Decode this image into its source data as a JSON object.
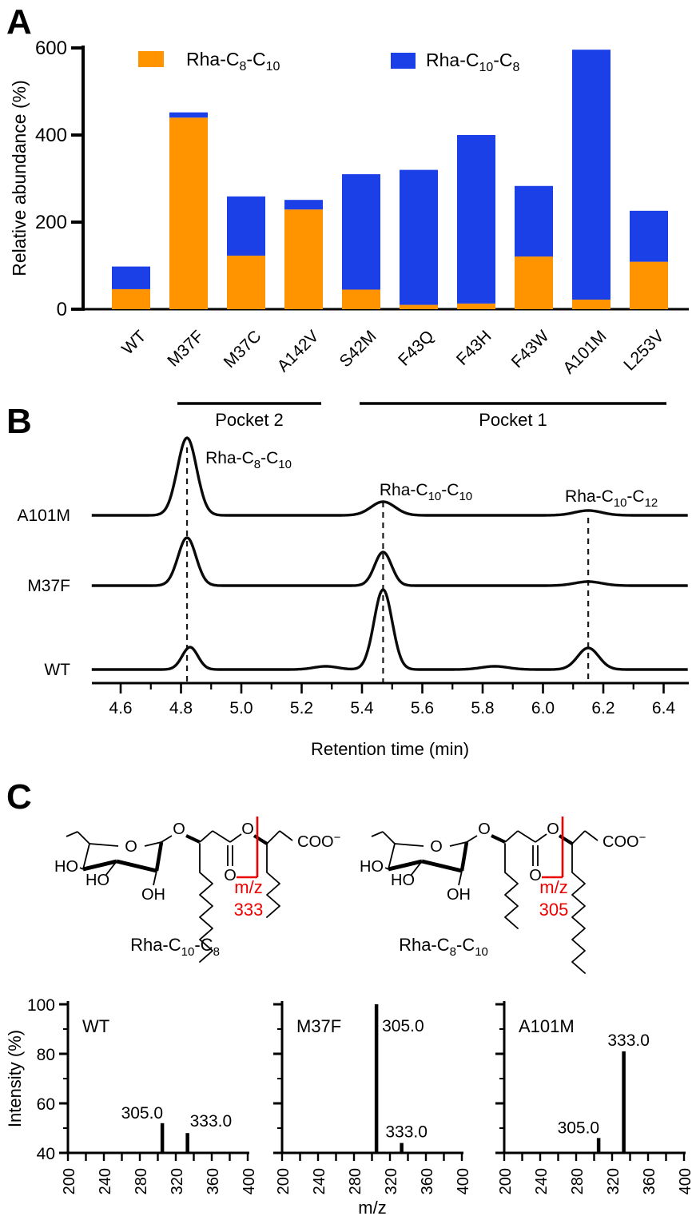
{
  "panels": {
    "a": {
      "label": "A"
    },
    "b": {
      "label": "B"
    },
    "c": {
      "label": "C",
      "accent_red": "#ED0000",
      "structures": [
        {
          "caption_parts": [
            [
              "Rha-C",
              0
            ],
            [
              "10",
              1
            ],
            [
              "-C",
              0
            ],
            [
              "8",
              1
            ]
          ],
          "mz_prefix": "m/z",
          "mz_value": "333",
          "ring_oxygen": "O",
          "glycosidic_oxygen": "O",
          "ester_oxygen": "O",
          "carbonyl_oxygen": "O",
          "hydroxyl_left": "HO",
          "hydroxyl_mid": "HO",
          "hydroxyl_bottom": "OH",
          "carboxylate": "COO",
          "carboxylate_charge": "−",
          "tail1": "long",
          "tail2": "short"
        },
        {
          "caption_parts": [
            [
              "Rha-C",
              0
            ],
            [
              "8",
              1
            ],
            [
              "-C",
              0
            ],
            [
              "10",
              1
            ]
          ],
          "mz_prefix": "m/z",
          "mz_value": "305",
          "ring_oxygen": "O",
          "glycosidic_oxygen": "O",
          "ester_oxygen": "O",
          "carbonyl_oxygen": "O",
          "hydroxyl_left": "HO",
          "hydroxyl_mid": "HO",
          "hydroxyl_bottom": "OH",
          "carboxylate": "COO",
          "carboxylate_charge": "−",
          "tail1": "short",
          "tail2": "long"
        }
      ]
    }
  },
  "chart_data": [
    {
      "id": "panel-a",
      "type": "bar",
      "stacked": true,
      "categories": [
        "WT",
        "M37F",
        "M37C",
        "A142V",
        "S42M",
        "F43Q",
        "F43H",
        "F43W",
        "A101M",
        "L253V"
      ],
      "series": [
        {
          "name": "Rha-C8-C10",
          "name_parts": [
            [
              "Rha-C",
              0
            ],
            [
              "8",
              1
            ],
            [
              "-C",
              0
            ],
            [
              "10",
              1
            ]
          ],
          "color": "#FF9300",
          "values": [
            46,
            440,
            123,
            229,
            45,
            10,
            13,
            121,
            22,
            109
          ]
        },
        {
          "name": "Rha-C10-C8",
          "name_parts": [
            [
              "Rha-C",
              0
            ],
            [
              "10",
              1
            ],
            [
              "-C",
              0
            ],
            [
              "8",
              1
            ]
          ],
          "color": "#1C40E8",
          "values": [
            52,
            12,
            136,
            22,
            265,
            310,
            387,
            162,
            574,
            117
          ]
        }
      ],
      "ylabel": "Relative abundance (%)",
      "ylim": [
        0,
        600
      ],
      "yticks": [
        0,
        200,
        400,
        600
      ],
      "legend_position": "top-inside",
      "grid": false,
      "group_annotations": [
        {
          "label": "Pocket 2",
          "first_category": "M37F",
          "last_category": "A142V"
        },
        {
          "label": "Pocket 1",
          "first_category": "S42M",
          "last_category": "L253V"
        }
      ]
    },
    {
      "id": "panel-b",
      "type": "line",
      "kind": "chromatogram",
      "xlabel": "Retention time (min)",
      "xlim": [
        4.5,
        6.48
      ],
      "xticks": [
        4.6,
        4.8,
        5.0,
        5.2,
        5.4,
        5.6,
        5.8,
        6.0,
        6.2,
        6.4
      ],
      "xtick_labels": [
        "4.6",
        "4.8",
        "5.0",
        "5.2",
        "5.4",
        "5.6",
        "5.8",
        "6.0",
        "6.2",
        "6.4"
      ],
      "minor_xticks": [
        4.7,
        4.9,
        5.1,
        5.3,
        5.5,
        5.7,
        5.9,
        6.1,
        6.3
      ],
      "dashed_guides_x": [
        4.82,
        5.47,
        6.15
      ],
      "peak_labels": [
        {
          "parts": [
            [
              "Rha-C",
              0
            ],
            [
              "8",
              1
            ],
            [
              "-C",
              0
            ],
            [
              "10",
              1
            ]
          ],
          "x": 4.881
        },
        {
          "parts": [
            [
              "Rha-C",
              0
            ],
            [
              "10",
              1
            ],
            [
              "-C",
              0
            ],
            [
              "10",
              1
            ]
          ],
          "x": 5.458
        },
        {
          "parts": [
            [
              "Rha-C",
              0
            ],
            [
              "10",
              1
            ],
            [
              "-C",
              0
            ],
            [
              "12",
              1
            ]
          ],
          "x": 6.073
        }
      ],
      "traces": [
        {
          "name": "A101M",
          "peaks": [
            {
              "x": 4.82,
              "height": 97,
              "sigma": 0.032
            },
            {
              "x": 5.47,
              "height": 17,
              "sigma": 0.04
            },
            {
              "x": 6.15,
              "height": 6,
              "sigma": 0.045
            }
          ]
        },
        {
          "name": "M37F",
          "peaks": [
            {
              "x": 4.82,
              "height": 60,
              "sigma": 0.03
            },
            {
              "x": 5.47,
              "height": 42,
              "sigma": 0.028
            },
            {
              "x": 6.15,
              "height": 5,
              "sigma": 0.045
            }
          ]
        },
        {
          "name": "WT",
          "peaks": [
            {
              "x": 4.83,
              "height": 28,
              "sigma": 0.026
            },
            {
              "x": 5.28,
              "height": 4,
              "sigma": 0.04
            },
            {
              "x": 5.47,
              "height": 100,
              "sigma": 0.03
            },
            {
              "x": 5.84,
              "height": 4,
              "sigma": 0.045
            },
            {
              "x": 6.15,
              "height": 27,
              "sigma": 0.035
            }
          ]
        }
      ]
    },
    {
      "id": "panel-c-spectra",
      "type": "bar",
      "kind": "mass-spectra",
      "ylabel": "Intensity (%)",
      "xlabel": "m/z",
      "ylim": [
        40,
        100
      ],
      "yticks": [
        40,
        60,
        80,
        100
      ],
      "ytick_labels": [
        "40",
        "60",
        "80",
        "100"
      ],
      "minor_yticks": [
        50,
        70,
        90
      ],
      "xlim": [
        200,
        400
      ],
      "xticks": [
        200,
        240,
        280,
        320,
        360,
        400
      ],
      "minor_xtick_step": 20,
      "panels": [
        {
          "name": "WT",
          "peaks": [
            {
              "mz": 305.0,
              "intensity": 52,
              "label": "305.0",
              "label_side": "left"
            },
            {
              "mz": 333.0,
              "intensity": 48,
              "label": "333.0",
              "label_side": "right"
            }
          ]
        },
        {
          "name": "M37F",
          "peaks": [
            {
              "mz": 305.0,
              "intensity": 100,
              "label": "305.0",
              "label_side": "right"
            },
            {
              "mz": 333.0,
              "intensity": 44,
              "label": "333.0",
              "label_side": "above"
            }
          ]
        },
        {
          "name": "A101M",
          "peaks": [
            {
              "mz": 305.0,
              "intensity": 46,
              "label": "305.0",
              "label_side": "left"
            },
            {
              "mz": 333.0,
              "intensity": 81,
              "label": "333.0",
              "label_side": "above"
            }
          ]
        }
      ]
    }
  ]
}
